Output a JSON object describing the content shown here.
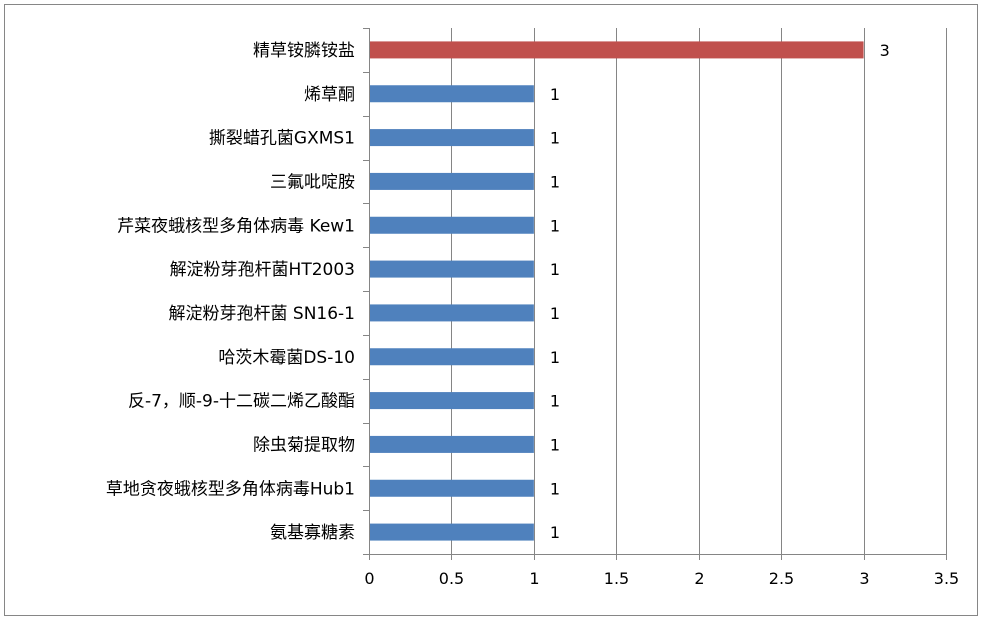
{
  "chart_data": {
    "type": "bar",
    "orientation": "horizontal",
    "categories": [
      "精草铵膦铵盐",
      "烯草酮",
      "撕裂蜡孔菌GXMS1",
      "三氟吡啶胺",
      "芹菜夜蛾核型多角体病毒 Kew1",
      "解淀粉芽孢杆菌HT2003",
      "解淀粉芽孢杆菌 SN16-1",
      "哈茨木霉菌DS-10",
      "反-7，顺-9-十二碳二烯乙酸酯",
      "除虫菊提取物",
      "草地贪夜蛾核型多角体病毒Hub1",
      "氨基寡糖素"
    ],
    "values": [
      3,
      1,
      1,
      1,
      1,
      1,
      1,
      1,
      1,
      1,
      1,
      1
    ],
    "data_labels": [
      "3",
      "1",
      "1",
      "1",
      "1",
      "1",
      "1",
      "1",
      "1",
      "1",
      "1",
      "1"
    ],
    "bar_colors": [
      "#c0504d",
      "#4f81bd",
      "#4f81bd",
      "#4f81bd",
      "#4f81bd",
      "#4f81bd",
      "#4f81bd",
      "#4f81bd",
      "#4f81bd",
      "#4f81bd",
      "#4f81bd",
      "#4f81bd"
    ],
    "xlim": [
      0,
      3.5
    ],
    "x_ticks": [
      0,
      0.5,
      1,
      1.5,
      2,
      2.5,
      3,
      3.5
    ],
    "x_tick_labels": [
      "0",
      "0.5",
      "1",
      "1.5",
      "2",
      "2.5",
      "3",
      "3.5"
    ],
    "title": "",
    "xlabel": "",
    "ylabel": "",
    "grid": "vertical major gridlines",
    "legend": "none"
  },
  "colors": {
    "gridline": "#858585",
    "axis": "#858585",
    "frame": "#868686",
    "background": "#ffffff"
  }
}
